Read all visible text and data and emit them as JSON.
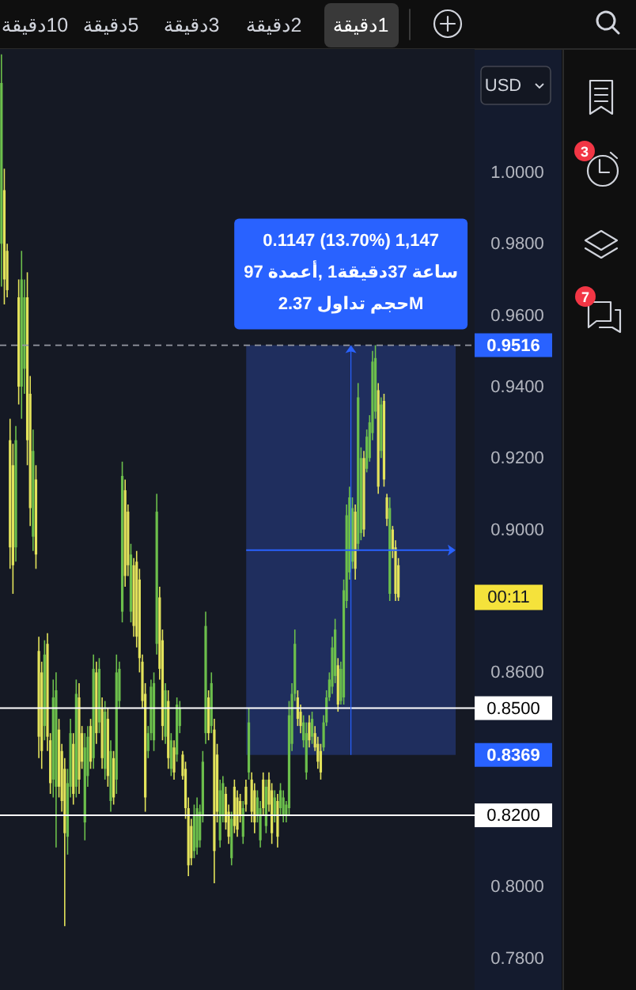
{
  "chart_data": {
    "type": "candlestick",
    "categories": [
      null,
      null,
      null,
      null,
      null,
      null,
      null,
      null,
      null,
      null,
      null,
      null,
      null,
      null,
      null,
      null,
      null,
      null,
      null,
      null,
      null,
      null,
      null,
      null,
      null,
      null,
      null,
      null,
      null,
      null,
      null,
      null,
      null,
      null,
      null,
      null,
      null,
      null,
      null,
      null,
      null,
      null,
      null,
      null,
      null,
      null,
      null,
      null,
      null,
      null,
      null,
      null,
      null,
      null,
      null,
      null,
      null,
      null,
      null,
      null,
      null,
      null,
      null,
      null,
      null,
      null,
      null,
      null,
      null,
      null,
      null,
      null,
      null,
      null,
      null,
      null,
      null,
      null,
      null,
      null,
      null,
      null,
      null,
      null,
      null,
      null,
      null,
      null,
      null,
      null,
      null,
      null,
      null,
      null,
      null,
      null,
      null,
      null,
      null,
      null,
      null,
      null,
      null,
      null,
      null,
      null,
      null,
      null,
      null,
      null,
      null,
      null,
      null,
      null,
      null,
      null,
      null,
      null,
      null,
      null,
      null,
      null,
      null,
      null,
      null,
      null,
      null,
      null,
      null,
      null,
      null,
      null,
      null,
      null,
      null,
      null,
      null,
      null,
      null,
      null,
      null,
      null,
      null,
      null,
      null,
      null,
      null,
      null,
      null,
      null,
      null,
      null,
      null,
      null,
      null,
      null,
      null,
      null,
      null,
      null,
      null,
      null,
      null,
      null,
      null
    ],
    "ohlc": [
      [
        0.98,
        1.033,
        0.968,
        1.025
      ],
      [
        0.995,
        1.001,
        0.963,
        0.97
      ],
      [
        0.978,
        0.98,
        0.965,
        0.967
      ],
      [
        0.925,
        0.931,
        0.889,
        0.895
      ],
      [
        0.918,
        0.924,
        0.882,
        0.89
      ],
      [
        0.895,
        0.929,
        0.891,
        0.925
      ],
      [
        0.965,
        0.97,
        0.935,
        0.94
      ],
      [
        0.94,
        0.978,
        0.931,
        0.97
      ],
      [
        0.945,
        0.97,
        0.938,
        0.965
      ],
      [
        0.965,
        0.972,
        0.918,
        0.925
      ],
      [
        0.938,
        0.943,
        0.901,
        0.906
      ],
      [
        0.898,
        0.928,
        0.894,
        0.922
      ],
      [
        0.914,
        0.918,
        0.889,
        0.893
      ],
      [
        0.866,
        0.87,
        0.836,
        0.842
      ],
      [
        0.86,
        0.863,
        0.833,
        0.838
      ],
      [
        0.845,
        0.869,
        0.841,
        0.865
      ],
      [
        0.868,
        0.871,
        0.838,
        0.842
      ],
      [
        0.841,
        0.843,
        0.826,
        0.829
      ],
      [
        0.83,
        0.858,
        0.825,
        0.853
      ],
      [
        0.828,
        0.86,
        0.811,
        0.855
      ],
      [
        0.844,
        0.847,
        0.825,
        0.828
      ],
      [
        0.838,
        0.84,
        0.821,
        0.824
      ],
      [
        0.833,
        0.836,
        0.789,
        0.815
      ],
      [
        0.814,
        0.833,
        0.809,
        0.829
      ],
      [
        0.828,
        0.847,
        0.825,
        0.843
      ],
      [
        0.84,
        0.843,
        0.823,
        0.826
      ],
      [
        0.828,
        0.858,
        0.825,
        0.854
      ],
      [
        0.853,
        0.857,
        0.826,
        0.83
      ],
      [
        0.843,
        0.845,
        0.833,
        0.835
      ],
      [
        0.818,
        0.843,
        0.813,
        0.839
      ],
      [
        0.831,
        0.845,
        0.828,
        0.842
      ],
      [
        0.845,
        0.847,
        0.833,
        0.835
      ],
      [
        0.836,
        0.865,
        0.833,
        0.861
      ],
      [
        0.86,
        0.863,
        0.84,
        0.843
      ],
      [
        0.846,
        0.864,
        0.843,
        0.861
      ],
      [
        0.85,
        0.853,
        0.833,
        0.836
      ],
      [
        0.833,
        0.852,
        0.83,
        0.849
      ],
      [
        0.847,
        0.85,
        0.828,
        0.831
      ],
      [
        0.824,
        0.841,
        0.821,
        0.838
      ],
      [
        0.836,
        0.838,
        0.823,
        0.825
      ],
      [
        0.83,
        0.865,
        0.826,
        0.86
      ],
      [
        0.852,
        0.863,
        0.85,
        0.861
      ],
      [
        0.877,
        0.919,
        0.874,
        0.915
      ],
      [
        0.911,
        0.914,
        0.884,
        0.887
      ],
      [
        0.905,
        0.907,
        0.887,
        0.89
      ],
      [
        0.877,
        0.896,
        0.874,
        0.893
      ],
      [
        0.89,
        0.892,
        0.87,
        0.873
      ],
      [
        0.891,
        0.894,
        0.867,
        0.87
      ],
      [
        0.886,
        0.889,
        0.86,
        0.864
      ],
      [
        0.863,
        0.865,
        0.85,
        0.852
      ],
      [
        0.854,
        0.857,
        0.821,
        0.825
      ],
      [
        0.838,
        0.845,
        0.836,
        0.843
      ],
      [
        0.843,
        0.858,
        0.841,
        0.856
      ],
      [
        0.841,
        0.86,
        0.838,
        0.857
      ],
      [
        0.868,
        0.91,
        0.865,
        0.905
      ],
      [
        0.881,
        0.884,
        0.858,
        0.861
      ],
      [
        0.869,
        0.872,
        0.841,
        0.845
      ],
      [
        0.842,
        0.857,
        0.84,
        0.855
      ],
      [
        0.852,
        0.855,
        0.833,
        0.836
      ],
      [
        0.833,
        0.843,
        0.831,
        0.841
      ],
      [
        0.839,
        0.841,
        0.83,
        0.832
      ],
      [
        0.837,
        0.853,
        0.835,
        0.851
      ],
      [
        0.845,
        0.852,
        0.843,
        0.85
      ],
      [
        0.837,
        0.838,
        0.83,
        0.831
      ],
      [
        0.833,
        0.835,
        0.819,
        0.822
      ],
      [
        0.822,
        0.825,
        0.803,
        0.806
      ],
      [
        0.817,
        0.819,
        0.806,
        0.808
      ],
      [
        0.81,
        0.823,
        0.808,
        0.82
      ],
      [
        0.811,
        0.825,
        0.809,
        0.822
      ],
      [
        0.813,
        0.823,
        0.811,
        0.821
      ],
      [
        0.82,
        0.838,
        0.818,
        0.835
      ],
      [
        0.843,
        0.877,
        0.84,
        0.873
      ],
      [
        0.853,
        0.855,
        0.841,
        0.843
      ],
      [
        0.845,
        0.86,
        0.843,
        0.857
      ],
      [
        0.844,
        0.847,
        0.801,
        0.81
      ],
      [
        0.837,
        0.84,
        0.818,
        0.821
      ],
      [
        0.813,
        0.83,
        0.811,
        0.827
      ],
      [
        0.82,
        0.831,
        0.818,
        0.829
      ],
      [
        0.826,
        0.828,
        0.816,
        0.818
      ],
      [
        0.821,
        0.823,
        0.812,
        0.814
      ],
      [
        0.808,
        0.821,
        0.806,
        0.819
      ],
      [
        0.828,
        0.83,
        0.815,
        0.817
      ],
      [
        0.825,
        0.827,
        0.814,
        0.816
      ],
      [
        0.824,
        0.826,
        0.818,
        0.82
      ],
      [
        0.814,
        0.824,
        0.812,
        0.822
      ],
      [
        0.828,
        0.83,
        0.821,
        0.823
      ],
      [
        0.832,
        0.85,
        0.83,
        0.846
      ],
      [
        0.83,
        0.832,
        0.818,
        0.821
      ],
      [
        0.827,
        0.829,
        0.815,
        0.818
      ],
      [
        0.82,
        0.827,
        0.818,
        0.825
      ],
      [
        0.813,
        0.824,
        0.811,
        0.822
      ],
      [
        0.83,
        0.832,
        0.82,
        0.822
      ],
      [
        0.817,
        0.83,
        0.815,
        0.828
      ],
      [
        0.83,
        0.832,
        0.821,
        0.823
      ],
      [
        0.827,
        0.829,
        0.812,
        0.815
      ],
      [
        0.82,
        0.827,
        0.818,
        0.825
      ],
      [
        0.824,
        0.826,
        0.811,
        0.814
      ],
      [
        0.822,
        0.829,
        0.82,
        0.827
      ],
      [
        0.82,
        0.827,
        0.818,
        0.825
      ],
      [
        0.82,
        0.824,
        0.818,
        0.823
      ],
      [
        0.822,
        0.852,
        0.82,
        0.848
      ],
      [
        0.84,
        0.857,
        0.838,
        0.854
      ],
      [
        0.854,
        0.872,
        0.852,
        0.868
      ],
      [
        0.853,
        0.855,
        0.845,
        0.847
      ],
      [
        0.849,
        0.851,
        0.843,
        0.845
      ],
      [
        0.841,
        0.848,
        0.839,
        0.846
      ],
      [
        0.832,
        0.846,
        0.83,
        0.843
      ],
      [
        0.846,
        0.848,
        0.839,
        0.841
      ],
      [
        0.842,
        0.849,
        0.84,
        0.847
      ],
      [
        0.843,
        0.845,
        0.838,
        0.839
      ],
      [
        0.84,
        0.842,
        0.833,
        0.835
      ],
      [
        0.838,
        0.84,
        0.83,
        0.832
      ],
      [
        0.839,
        0.848,
        0.838,
        0.846
      ],
      [
        0.846,
        0.855,
        0.845,
        0.853
      ],
      [
        0.853,
        0.86,
        0.852,
        0.858
      ],
      [
        0.856,
        0.87,
        0.854,
        0.867
      ],
      [
        0.859,
        0.875,
        0.857,
        0.872
      ],
      [
        0.862,
        0.864,
        0.849,
        0.851
      ],
      [
        0.852,
        0.863,
        0.851,
        0.861
      ],
      [
        0.853,
        0.886,
        0.851,
        0.883
      ],
      [
        0.88,
        0.907,
        0.878,
        0.904
      ],
      [
        0.888,
        0.912,
        0.886,
        0.909
      ],
      [
        0.891,
        0.909,
        0.889,
        0.906
      ],
      [
        0.905,
        0.907,
        0.886,
        0.889
      ],
      [
        0.896,
        0.941,
        0.894,
        0.937
      ],
      [
        0.899,
        0.923,
        0.897,
        0.92
      ],
      [
        0.92,
        0.922,
        0.898,
        0.9
      ],
      [
        0.917,
        0.928,
        0.916,
        0.926
      ],
      [
        0.92,
        0.932,
        0.919,
        0.93
      ],
      [
        0.927,
        0.95,
        0.925,
        0.947
      ],
      [
        0.933,
        0.9516,
        0.931,
        0.948
      ],
      [
        0.939,
        0.941,
        0.91,
        0.912
      ],
      [
        0.922,
        0.937,
        0.92,
        0.935
      ],
      [
        0.936,
        0.938,
        0.912,
        0.914
      ],
      [
        0.909,
        0.91,
        0.901,
        0.903
      ],
      [
        0.882,
        0.909,
        0.88,
        0.906
      ],
      [
        0.9,
        0.901,
        0.892,
        0.894
      ],
      [
        0.895,
        0.897,
        0.88,
        0.882
      ],
      [
        0.89,
        0.892,
        0.88,
        0.881
      ],
      null,
      null,
      null,
      null,
      null,
      null,
      null,
      null,
      null,
      null,
      null,
      null,
      null,
      null,
      null,
      null,
      null,
      null,
      null,
      null,
      null,
      null,
      null,
      null,
      null,
      null
    ],
    "colors": [
      "#6cbf4c",
      "#e3e35b",
      "#e3e35b",
      "#e3e35b",
      "#e3e35b",
      "#6cbf4c",
      "#e3e35b",
      "#6cbf4c",
      "#6cbf4c",
      "#e3e35b",
      "#e3e35b",
      "#6cbf4c",
      "#e3e35b",
      "#e3e35b",
      "#e3e35b",
      "#6cbf4c",
      "#e3e35b",
      "#e3e35b",
      "#6cbf4c",
      "#6cbf4c",
      "#e3e35b",
      "#e3e35b",
      "#e3e35b",
      "#6cbf4c",
      "#6cbf4c",
      "#e3e35b",
      "#6cbf4c",
      "#e3e35b",
      "#e3e35b",
      "#6cbf4c",
      "#6cbf4c",
      "#e3e35b",
      "#6cbf4c",
      "#e3e35b",
      "#6cbf4c",
      "#e3e35b",
      "#6cbf4c",
      "#e3e35b",
      "#6cbf4c",
      "#e3e35b",
      "#6cbf4c",
      "#6cbf4c",
      "#6cbf4c",
      "#e3e35b",
      "#e3e35b",
      "#6cbf4c",
      "#e3e35b",
      "#e3e35b",
      "#e3e35b",
      "#e3e35b",
      "#e3e35b",
      "#6cbf4c",
      "#6cbf4c",
      "#6cbf4c",
      "#6cbf4c",
      "#e3e35b",
      "#e3e35b",
      "#6cbf4c",
      "#e3e35b",
      "#6cbf4c",
      "#e3e35b",
      "#6cbf4c",
      "#6cbf4c",
      "#e3e35b",
      "#e3e35b",
      "#e3e35b",
      "#e3e35b",
      "#6cbf4c",
      "#6cbf4c",
      "#6cbf4c",
      "#6cbf4c",
      "#6cbf4c",
      "#e3e35b",
      "#6cbf4c",
      "#e3e35b",
      "#e3e35b",
      "#6cbf4c",
      "#6cbf4c",
      "#e3e35b",
      "#e3e35b",
      "#6cbf4c",
      "#e3e35b",
      "#e3e35b",
      "#e3e35b",
      "#6cbf4c",
      "#e3e35b",
      "#6cbf4c",
      "#e3e35b",
      "#e3e35b",
      "#6cbf4c",
      "#6cbf4c",
      "#e3e35b",
      "#6cbf4c",
      "#e3e35b",
      "#e3e35b",
      "#6cbf4c",
      "#e3e35b",
      "#6cbf4c",
      "#6cbf4c",
      "#6cbf4c",
      "#6cbf4c",
      "#6cbf4c",
      "#6cbf4c",
      "#e3e35b",
      "#e3e35b",
      "#6cbf4c",
      "#6cbf4c",
      "#e3e35b",
      "#6cbf4c",
      "#e3e35b",
      "#e3e35b",
      "#e3e35b",
      "#6cbf4c",
      "#6cbf4c",
      "#6cbf4c",
      "#6cbf4c",
      "#6cbf4c",
      "#e3e35b",
      "#6cbf4c",
      "#6cbf4c",
      "#6cbf4c",
      "#6cbf4c",
      "#6cbf4c",
      "#e3e35b",
      "#6cbf4c",
      "#6cbf4c",
      "#e3e35b",
      "#6cbf4c",
      "#6cbf4c",
      "#6cbf4c",
      "#6cbf4c",
      "#e3e35b",
      "#6cbf4c",
      "#e3e35b",
      "#e3e35b",
      "#6cbf4c",
      "#e3e35b",
      "#e3e35b",
      "#e3e35b",
      null,
      null,
      null,
      null,
      null,
      null,
      null,
      null,
      null,
      null,
      null,
      null,
      null,
      null,
      null,
      null,
      null,
      null,
      null,
      null,
      null,
      null,
      null,
      null,
      null,
      null
    ],
    "ylim": [
      0.7711,
      1.0345
    ],
    "yticks": [
      {
        "value": 0.78,
        "label": "0.7800"
      },
      {
        "value": 0.8,
        "label": "0.8000"
      },
      {
        "value": 0.86,
        "label": "0.8600"
      },
      {
        "value": 0.9,
        "label": "0.9000"
      },
      {
        "value": 0.92,
        "label": "0.9200"
      },
      {
        "value": 0.94,
        "label": "0.9400"
      },
      {
        "value": 0.96,
        "label": "0.9600"
      },
      {
        "value": 0.98,
        "label": "0.9800"
      },
      {
        "value": 1.0,
        "label": "1.0000"
      }
    ],
    "ref_lines": [
      {
        "axis": "y",
        "value": 0.85,
        "label": "0.8500",
        "color": "#ffffff"
      },
      {
        "axis": "y",
        "value": 0.82,
        "label": "0.8200",
        "color": "#ffffff"
      },
      {
        "axis": "y",
        "value": 0.9516,
        "label": "0.9516",
        "color": "#9598a1",
        "line_style": "dashed"
      }
    ],
    "bands": [
      {
        "axis": "y",
        "from": 0.8369,
        "to": 0.9516,
        "label": "0.8369",
        "color": "#1f2e5e"
      }
    ],
    "annotations": [
      "10دقيقة",
      "5دقيقة",
      "3دقيقة",
      "2دقيقة",
      "1دقيقة",
      "USD",
      "3",
      "7",
      "0.1147 (13.70%) 1,147",
      "ساعة 37دقيقة1 ,أعمدة 97",
      "Mحجم تداول 2.37",
      {
        "text": "00:11",
        "y": 0.881
      }
    ]
  }
}
